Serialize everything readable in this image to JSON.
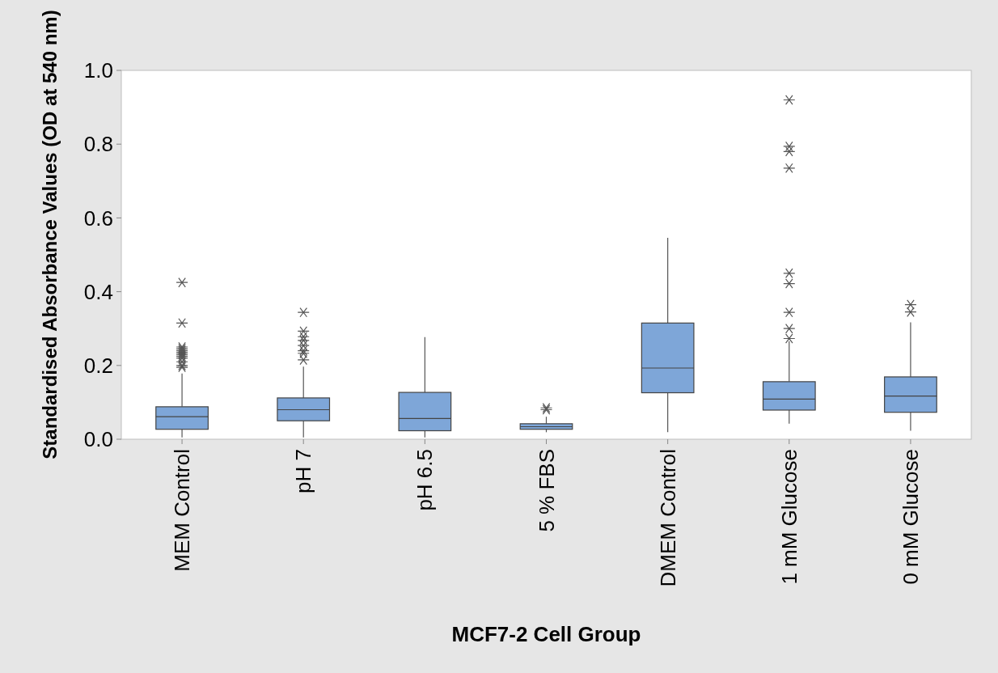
{
  "chart_data": {
    "type": "box",
    "xlabel": "MCF7-2 Cell Group",
    "ylabel": "Standardised Absorbance Values (OD at 540 nm)",
    "categories": [
      "MEM Control",
      "pH 7",
      "pH 6.5",
      "5 % FBS",
      "DMEM Control",
      "1 mM Glucose",
      "0 mM Glucose"
    ],
    "color": "#7ea6d8",
    "boxes": [
      {
        "low": 0.005,
        "q1": 0.027,
        "median": 0.061,
        "q3": 0.088,
        "high": 0.178,
        "outliers": [
          0.425,
          0.315,
          0.25,
          0.245,
          0.24,
          0.235,
          0.23,
          0.225,
          0.22,
          0.21,
          0.2,
          0.195
        ]
      },
      {
        "low": 0.005,
        "q1": 0.05,
        "median": 0.08,
        "q3": 0.112,
        "high": 0.197,
        "outliers": [
          0.344,
          0.293,
          0.278,
          0.268,
          0.254,
          0.24,
          0.233,
          0.215
        ]
      },
      {
        "low": 0.005,
        "q1": 0.023,
        "median": 0.056,
        "q3": 0.127,
        "high": 0.277
      },
      {
        "low": 0.019,
        "q1": 0.027,
        "median": 0.034,
        "q3": 0.042,
        "high": 0.061,
        "outliers": [
          0.085,
          0.08
        ]
      },
      {
        "low": 0.019,
        "q1": 0.126,
        "median": 0.193,
        "q3": 0.315,
        "high": 0.546
      },
      {
        "low": 0.042,
        "q1": 0.079,
        "median": 0.109,
        "q3": 0.156,
        "high": 0.266,
        "outliers": [
          0.92,
          0.794,
          0.78,
          0.735,
          0.45,
          0.422,
          0.344,
          0.3,
          0.273
        ]
      },
      {
        "low": 0.023,
        "q1": 0.073,
        "median": 0.117,
        "q3": 0.169,
        "high": 0.317,
        "outliers": [
          0.365,
          0.345
        ]
      }
    ],
    "ylim": [
      0,
      1
    ],
    "yticks": [
      {
        "value": 0,
        "label": "0.0"
      },
      {
        "value": 0.2,
        "label": "0.2"
      },
      {
        "value": 0.4,
        "label": "0.4"
      },
      {
        "value": 0.6,
        "label": "0.6"
      },
      {
        "value": 0.8,
        "label": "0.8"
      },
      {
        "value": 1,
        "label": "1.0"
      }
    ],
    "grid": false
  }
}
